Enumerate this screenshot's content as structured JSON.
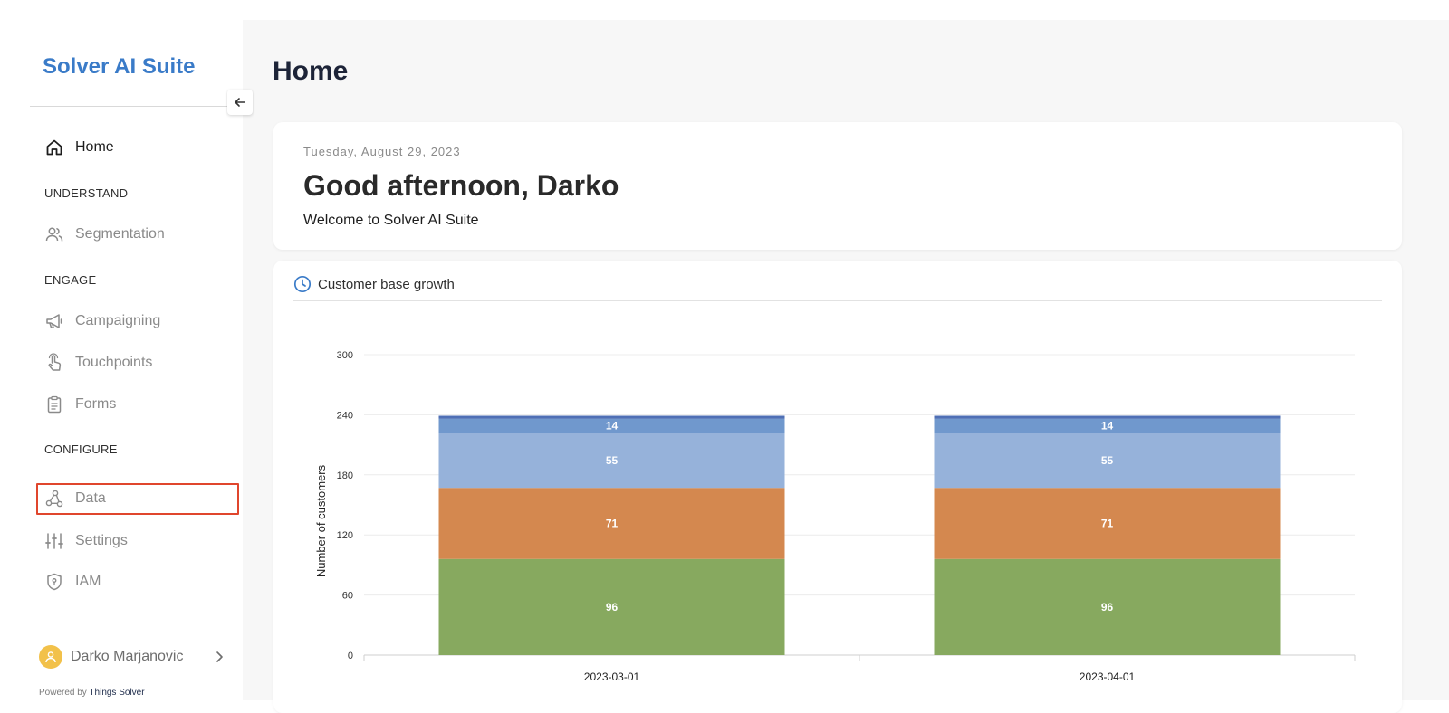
{
  "sidebar": {
    "brand": "Solver AI Suite",
    "home": "Home",
    "sections": {
      "understand": "UNDERSTAND",
      "engage": "ENGAGE",
      "configure": "CONFIGURE"
    },
    "items": {
      "segmentation": "Segmentation",
      "campaigning": "Campaigning",
      "touchpoints": "Touchpoints",
      "forms": "Forms",
      "data": "Data",
      "settings": "Settings",
      "iam": "IAM"
    },
    "user_name": "Darko Marjanovic",
    "powered_by_prefix": "Powered by",
    "powered_by_brand": "Things Solver"
  },
  "main": {
    "title": "Home",
    "greeting": {
      "date": "Tuesday, August 29, 2023",
      "headline": "Good afternoon, Darko",
      "subtitle": "Welcome to Solver AI Suite"
    },
    "chart_card_title": "Customer base growth"
  },
  "colors": {
    "brand": "#3a7bc8",
    "highlight": "#e0462d",
    "avatar": "#f2c14a"
  },
  "chart_data": {
    "type": "bar",
    "stacked": true,
    "categories": [
      "2023-03-01",
      "2023-04-01"
    ],
    "series": [
      {
        "values": [
          96,
          96
        ],
        "color": "#87a95f",
        "show_label": true
      },
      {
        "values": [
          71,
          71
        ],
        "color": "#d4884f",
        "show_label": true
      },
      {
        "values": [
          55,
          55
        ],
        "color": "#96b2da",
        "show_label": true
      },
      {
        "values": [
          14,
          14
        ],
        "color": "#7098cd",
        "show_label": true
      },
      {
        "values": [
          3,
          3
        ],
        "color": "#4f6fb5",
        "show_label": false
      }
    ],
    "ylabel": "Number of customers",
    "xlabel": "",
    "ylim": [
      0,
      300
    ],
    "yticks": [
      0,
      60,
      120,
      180,
      240,
      300
    ],
    "grid": true
  }
}
